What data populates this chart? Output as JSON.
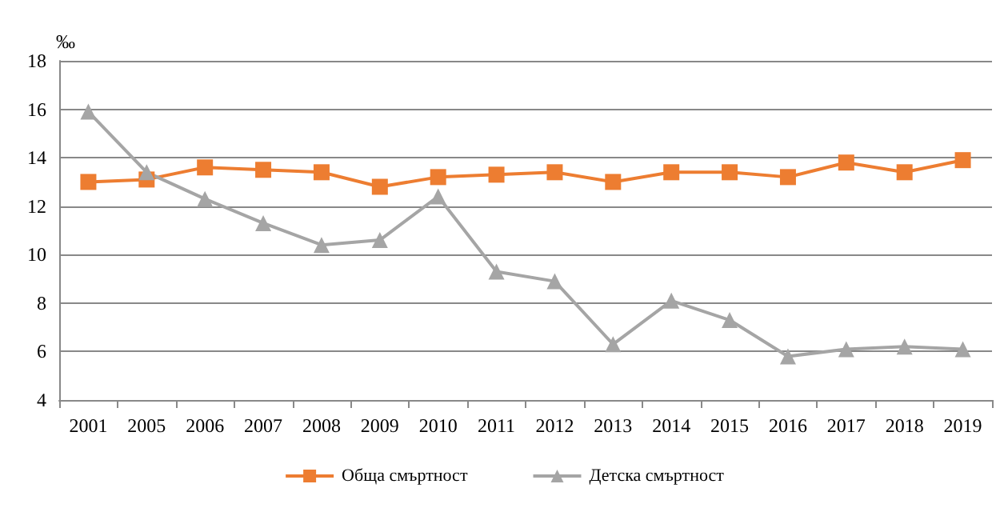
{
  "chart_data": {
    "type": "line",
    "ylabel": "‰",
    "categories": [
      "2001",
      "2005",
      "2006",
      "2007",
      "2008",
      "2009",
      "2010",
      "2011",
      "2012",
      "2013",
      "2014",
      "2015",
      "2016",
      "2017",
      "2018",
      "2019"
    ],
    "series": [
      {
        "name": "Обща смъртност",
        "color": "#ed7d31",
        "marker": "square",
        "values": [
          13.0,
          13.1,
          13.6,
          13.5,
          13.4,
          12.8,
          13.2,
          13.3,
          13.4,
          13.0,
          13.4,
          13.4,
          13.2,
          13.8,
          13.4,
          13.9
        ]
      },
      {
        "name": "Детска смъртност",
        "color": "#a5a5a5",
        "marker": "triangle",
        "values": [
          15.9,
          13.4,
          12.3,
          11.3,
          10.4,
          10.6,
          12.4,
          9.3,
          8.9,
          6.3,
          8.1,
          7.3,
          5.8,
          6.1,
          6.2,
          6.1
        ]
      }
    ],
    "ylim": [
      4,
      18
    ],
    "yticks": [
      4,
      6,
      8,
      10,
      12,
      14,
      16,
      18
    ],
    "grid": "y",
    "legend": "bottom"
  }
}
